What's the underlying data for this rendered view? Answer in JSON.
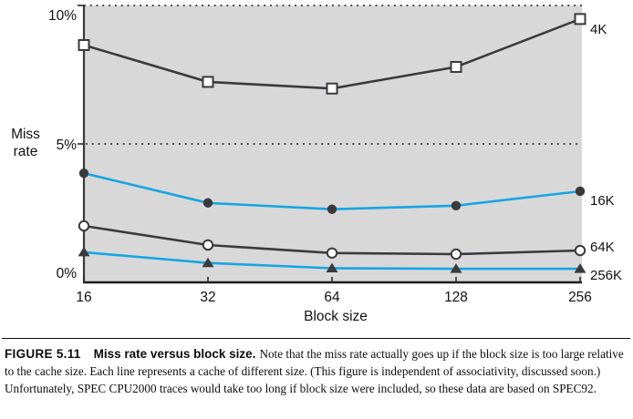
{
  "figure": {
    "caption": {
      "label": "FIGURE 5.11",
      "title": "Miss rate versus block size.",
      "body": "Note that the miss rate actually goes up if the block size is too large relative to the cache size. Each line represents a cache of different size. (This figure is independent of associativity, discussed soon.) Unfortunately, SPEC CPU2000 traces would take too long if block size were included, so these data are based on SPEC92."
    }
  },
  "chart_data": {
    "type": "line",
    "title": "Miss rate versus block size",
    "xlabel": "Block size",
    "ylabel": "Miss rate",
    "ylabel_lines": [
      "Miss",
      "rate"
    ],
    "categories": [
      "16",
      "32",
      "64",
      "128",
      "256"
    ],
    "x_values": [
      16,
      32,
      64,
      128,
      256
    ],
    "x_scale": "categorical (powers of two, evenly spaced)",
    "ylim": [
      0,
      10
    ],
    "ytick_labels": [
      "10%",
      "5%",
      "0%"
    ],
    "yticks_pct": [
      10,
      5,
      0
    ],
    "gridlines_pct": [
      10,
      5
    ],
    "grid_style": "dotted",
    "legend_position": "right-end-labels",
    "plot_bg_color": "#d8d8d8",
    "colors": {
      "dark": "#3a3a3e",
      "cyan": "#16a5e2",
      "marker_open_fill": "#ffffff",
      "text": "#111111"
    },
    "series": [
      {
        "name": "4K",
        "values": [
          8.57,
          7.24,
          7.0,
          7.78,
          9.51
        ],
        "color": "#3a3a3e",
        "marker": "square-open"
      },
      {
        "name": "16K",
        "values": [
          3.94,
          2.87,
          2.64,
          2.77,
          3.29
        ],
        "color": "#16a5e2",
        "marker": "circle-filled"
      },
      {
        "name": "64K",
        "values": [
          2.04,
          1.35,
          1.06,
          1.02,
          1.15
        ],
        "color": "#3a3a3e",
        "marker": "circle-open"
      },
      {
        "name": "256K",
        "values": [
          1.09,
          0.7,
          0.51,
          0.49,
          0.49
        ],
        "color": "#16a5e2",
        "marker": "triangle-filled"
      }
    ]
  }
}
